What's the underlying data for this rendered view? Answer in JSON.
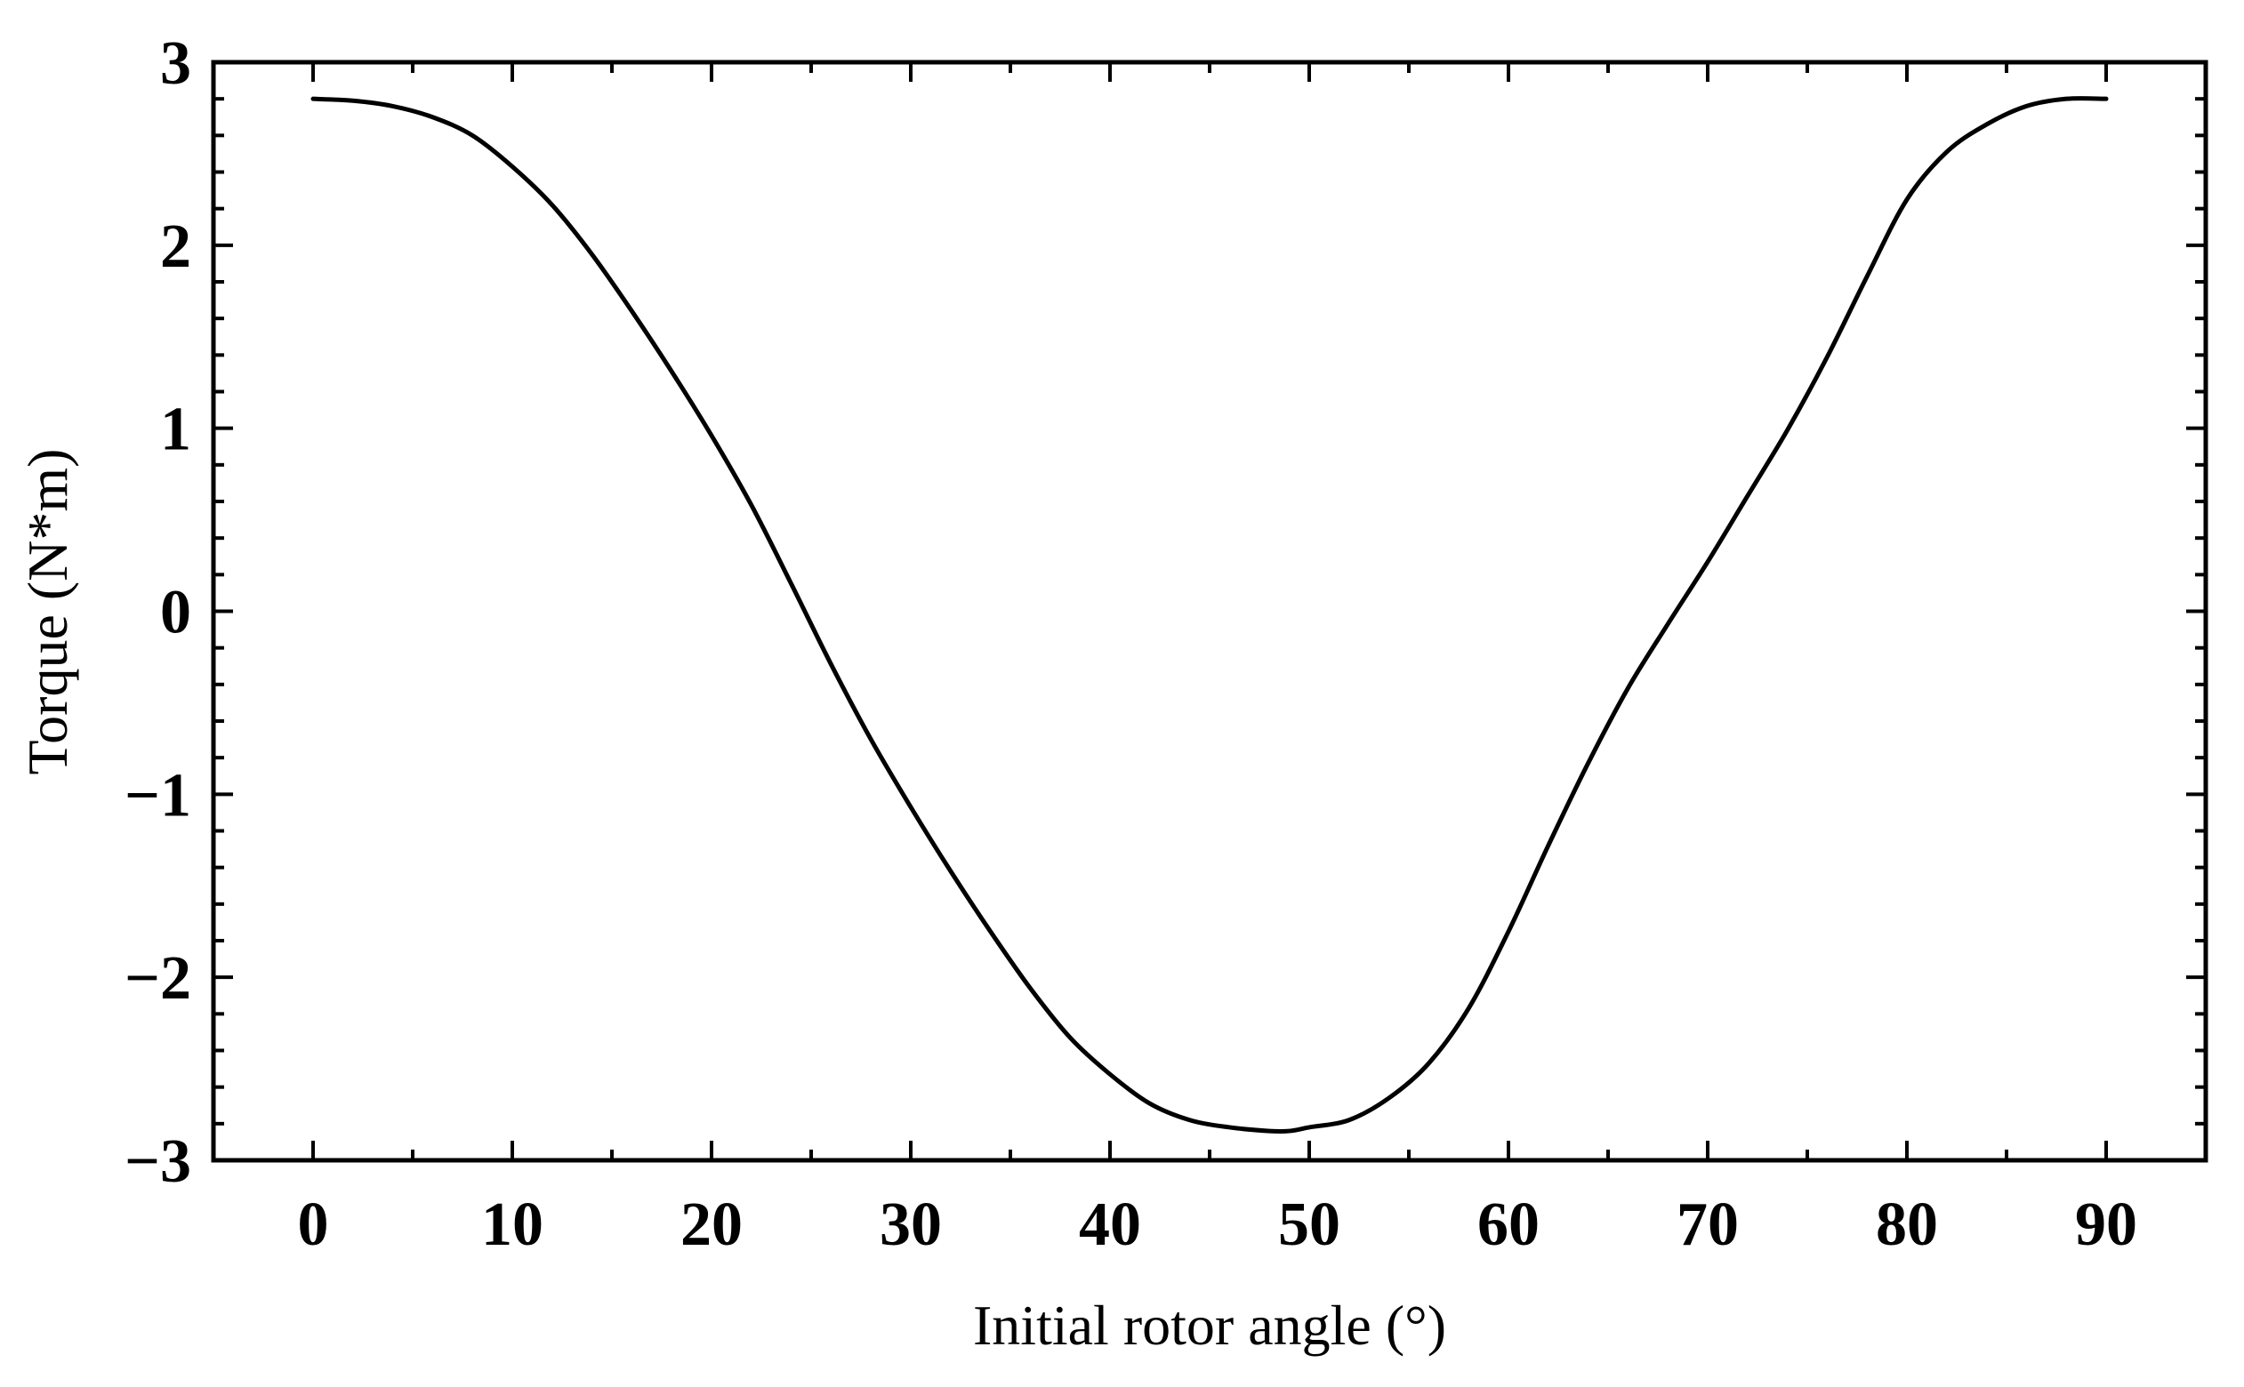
{
  "chart_data": {
    "type": "line",
    "title": "",
    "xlabel": "Initial rotor angle (°)",
    "ylabel": "Torque (N*m)",
    "xlim": [
      -5,
      95
    ],
    "ylim": [
      -3,
      3
    ],
    "x_ticks": [
      0,
      10,
      20,
      30,
      40,
      50,
      60,
      70,
      80,
      90
    ],
    "x_tick_labels": [
      "0",
      "10",
      "20",
      "30",
      "40",
      "50",
      "60",
      "70",
      "80",
      "90"
    ],
    "y_ticks": [
      3,
      2,
      1,
      0,
      -1,
      -2,
      -3
    ],
    "y_tick_labels": [
      "3",
      "2",
      "1",
      "0",
      "−1",
      "−2",
      "−3"
    ],
    "grid": false,
    "legend": "none",
    "line_color": "#000000",
    "series": [
      {
        "x": [
          0,
          2,
          4,
          6,
          8,
          10,
          12,
          14,
          16,
          18,
          20,
          22,
          24,
          26,
          28,
          30,
          32,
          34,
          36,
          38,
          40,
          42,
          44,
          46,
          48,
          49,
          50,
          52,
          54,
          56,
          58,
          60,
          62,
          64,
          66,
          68,
          70,
          72,
          74,
          76,
          78,
          80,
          82,
          84,
          86,
          88,
          90
        ],
        "y": [
          2.8,
          2.79,
          2.76,
          2.7,
          2.6,
          2.43,
          2.22,
          1.95,
          1.64,
          1.31,
          0.96,
          0.58,
          0.15,
          -0.29,
          -0.7,
          -1.07,
          -1.42,
          -1.75,
          -2.06,
          -2.33,
          -2.53,
          -2.69,
          -2.78,
          -2.82,
          -2.84,
          -2.84,
          -2.82,
          -2.78,
          -2.66,
          -2.47,
          -2.17,
          -1.75,
          -1.28,
          -0.83,
          -0.42,
          -0.07,
          0.27,
          0.63,
          0.99,
          1.39,
          1.83,
          2.25,
          2.51,
          2.66,
          2.76,
          2.8,
          2.8
        ]
      }
    ]
  }
}
